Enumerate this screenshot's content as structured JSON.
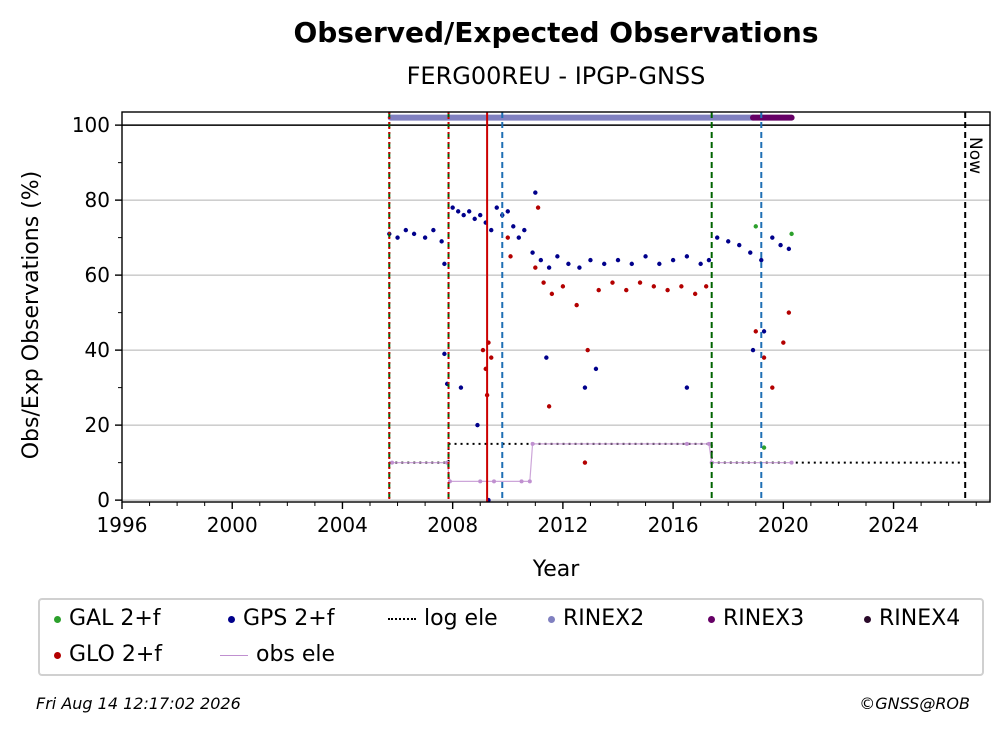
{
  "chart_data": {
    "type": "scatter",
    "title": "Observed/Expected Observations",
    "subtitle": "FERG00REU - IPGP-GNSS",
    "xlabel": "Year",
    "ylabel": "Obs/Exp Observations (%)",
    "xlim": [
      1996,
      2027.5
    ],
    "ylim": [
      -0.5,
      103.5
    ],
    "x_ticks": [
      "1996",
      "2000",
      "2004",
      "2008",
      "2012",
      "2016",
      "2020",
      "2024"
    ],
    "y_ticks": [
      "0",
      "20",
      "40",
      "60",
      "80",
      "100"
    ],
    "grid": "horizontal",
    "colors": {
      "GAL 2+f": "#2ca02c",
      "GPS 2+f": "#00008b",
      "GLO 2+f": "#b30000",
      "log ele": "#000000",
      "RINEX2": "#8080c0",
      "RINEX3": "#660066",
      "RINEX4": "#2a0a2a",
      "obs ele": "#c090d0"
    },
    "series": [
      {
        "name": "GPS 2+f",
        "type": "scatter",
        "points": [
          [
            2005.7,
            71
          ],
          [
            2006.0,
            70
          ],
          [
            2006.3,
            72
          ],
          [
            2006.6,
            71
          ],
          [
            2007.0,
            70
          ],
          [
            2007.3,
            72
          ],
          [
            2007.6,
            69
          ],
          [
            2007.7,
            63
          ],
          [
            2008.0,
            78
          ],
          [
            2008.2,
            77
          ],
          [
            2008.4,
            76
          ],
          [
            2008.6,
            77
          ],
          [
            2008.8,
            75
          ],
          [
            2009.0,
            76
          ],
          [
            2009.2,
            74
          ],
          [
            2009.4,
            72
          ],
          [
            2009.6,
            78
          ],
          [
            2009.8,
            76
          ],
          [
            2010.0,
            77
          ],
          [
            2010.2,
            73
          ],
          [
            2010.4,
            70
          ],
          [
            2010.6,
            72
          ],
          [
            2010.9,
            66
          ],
          [
            2011.2,
            64
          ],
          [
            2011.5,
            62
          ],
          [
            2011.8,
            65
          ],
          [
            2012.2,
            63
          ],
          [
            2012.6,
            62
          ],
          [
            2013.0,
            64
          ],
          [
            2013.5,
            63
          ],
          [
            2014.0,
            64
          ],
          [
            2014.5,
            63
          ],
          [
            2015.0,
            65
          ],
          [
            2015.5,
            63
          ],
          [
            2016.0,
            64
          ],
          [
            2016.5,
            65
          ],
          [
            2017.0,
            63
          ],
          [
            2017.3,
            64
          ],
          [
            2017.6,
            70
          ],
          [
            2018.0,
            69
          ],
          [
            2018.4,
            68
          ],
          [
            2018.8,
            66
          ],
          [
            2019.2,
            64
          ],
          [
            2019.6,
            70
          ],
          [
            2019.9,
            68
          ],
          [
            2020.2,
            67
          ],
          [
            2007.7,
            39
          ],
          [
            2007.8,
            31
          ],
          [
            2008.3,
            30
          ],
          [
            2008.9,
            20
          ],
          [
            2009.3,
            0
          ],
          [
            2011.0,
            82
          ],
          [
            2011.4,
            38
          ],
          [
            2012.8,
            30
          ],
          [
            2013.2,
            35
          ],
          [
            2016.5,
            30
          ],
          [
            2018.9,
            40
          ],
          [
            2019.3,
            45
          ]
        ]
      },
      {
        "name": "GLO 2+f",
        "type": "scatter",
        "points": [
          [
            2009.1,
            40
          ],
          [
            2009.2,
            35
          ],
          [
            2009.25,
            28
          ],
          [
            2009.3,
            42
          ],
          [
            2009.4,
            38
          ],
          [
            2010.0,
            70
          ],
          [
            2010.1,
            65
          ],
          [
            2011.0,
            62
          ],
          [
            2011.3,
            58
          ],
          [
            2011.6,
            55
          ],
          [
            2012.0,
            57
          ],
          [
            2012.5,
            52
          ],
          [
            2012.9,
            40
          ],
          [
            2013.3,
            56
          ],
          [
            2013.8,
            58
          ],
          [
            2014.3,
            56
          ],
          [
            2014.8,
            58
          ],
          [
            2015.3,
            57
          ],
          [
            2015.8,
            56
          ],
          [
            2016.3,
            57
          ],
          [
            2016.8,
            55
          ],
          [
            2017.2,
            57
          ],
          [
            2019.0,
            45
          ],
          [
            2019.3,
            38
          ],
          [
            2019.6,
            30
          ],
          [
            2020.0,
            42
          ],
          [
            2020.2,
            50
          ],
          [
            2011.1,
            78
          ],
          [
            2011.5,
            25
          ],
          [
            2012.8,
            10
          ]
        ]
      },
      {
        "name": "GAL 2+f",
        "type": "scatter",
        "points": [
          [
            2019.0,
            73
          ],
          [
            2019.3,
            14
          ],
          [
            2020.3,
            71
          ]
        ]
      },
      {
        "name": "log ele",
        "type": "step",
        "points": [
          [
            2005.7,
            10
          ],
          [
            2007.85,
            10
          ],
          [
            2007.85,
            15
          ],
          [
            2017.4,
            15
          ],
          [
            2017.4,
            10
          ],
          [
            2026.6,
            10
          ]
        ]
      },
      {
        "name": "RINEX2",
        "type": "band",
        "y": 102,
        "x_range": [
          2005.75,
          2018.9
        ]
      },
      {
        "name": "RINEX3",
        "type": "band",
        "y": 102,
        "x_range": [
          2018.9,
          2020.3
        ]
      },
      {
        "name": "RINEX4",
        "type": "band",
        "y": 102,
        "x_range": []
      },
      {
        "name": "obs ele",
        "type": "line",
        "points": [
          [
            2005.8,
            10
          ],
          [
            2007.8,
            10
          ],
          [
            2007.9,
            5
          ],
          [
            2009.0,
            5
          ],
          [
            2009.5,
            5
          ],
          [
            2010.5,
            5
          ],
          [
            2010.8,
            5
          ],
          [
            2010.9,
            15
          ],
          [
            2016.5,
            15
          ],
          [
            2017.3,
            15
          ],
          [
            2017.4,
            10
          ],
          [
            2020.3,
            10
          ]
        ]
      }
    ],
    "vlines": [
      {
        "x": 2005.7,
        "color": "#006400",
        "style": "dashed"
      },
      {
        "x": 2005.7,
        "color": "#cc0000",
        "style": "dotted"
      },
      {
        "x": 2007.85,
        "color": "#006400",
        "style": "dashed"
      },
      {
        "x": 2007.85,
        "color": "#cc0000",
        "style": "dotted"
      },
      {
        "x": 2009.25,
        "color": "#cc0000",
        "style": "solid"
      },
      {
        "x": 2009.8,
        "color": "#1f6fb4",
        "style": "dashed"
      },
      {
        "x": 2017.4,
        "color": "#006400",
        "style": "dashed"
      },
      {
        "x": 2019.2,
        "color": "#1f6fb4",
        "style": "dashed"
      },
      {
        "x": 2026.6,
        "color": "#000000",
        "style": "dashed"
      }
    ],
    "annotations": [
      {
        "text": "Now",
        "x": 2026.6
      }
    ]
  },
  "legend": {
    "row1": [
      "GAL 2+f",
      "GPS 2+f",
      "log ele",
      "RINEX2",
      "RINEX3",
      "RINEX4"
    ],
    "row2": [
      "GLO 2+f",
      "obs ele"
    ]
  },
  "footer": {
    "timestamp": "Fri Aug 14 12:17:02 2026",
    "credit": "©GNSS@ROB"
  }
}
